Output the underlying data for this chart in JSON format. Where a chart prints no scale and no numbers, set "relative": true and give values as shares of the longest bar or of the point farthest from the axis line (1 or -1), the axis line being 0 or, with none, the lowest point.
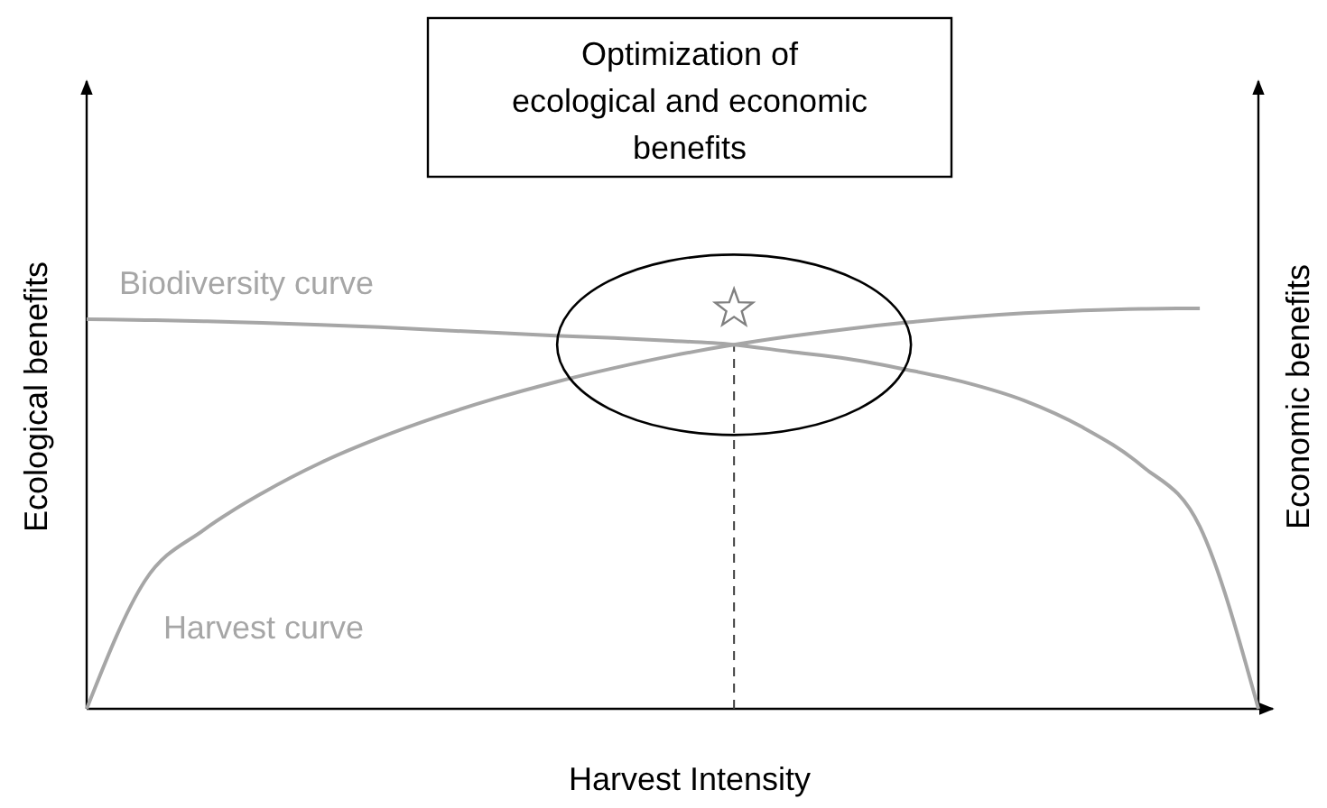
{
  "chart_data": {
    "type": "line",
    "relative": true,
    "title": "Optimization of ecological and economic benefits",
    "xlabel": "Harvest Intensity",
    "ylabel": "Ecological benefits",
    "y2label": "Economic benefits",
    "categories": [
      null,
      null,
      null,
      null,
      null,
      null,
      null,
      null,
      null,
      null,
      null,
      null,
      null,
      null,
      null,
      null,
      null,
      null,
      null,
      null,
      null
    ],
    "series": [
      {
        "name": "Biodiversity curve",
        "color": "#a6a6a6",
        "values": [
          0.973,
          0.971,
          0.968,
          0.964,
          0.959,
          0.953,
          0.946,
          0.939,
          0.932,
          0.926,
          0.919,
          0.91,
          0.892,
          0.874,
          0.847,
          0.815,
          0.77,
          0.703,
          0.608,
          0.455,
          0
        ]
      },
      {
        "name": "Harvest curve",
        "color": "#a6a6a6",
        "values": [
          0,
          0.321,
          0.447,
          0.539,
          0.615,
          0.677,
          0.73,
          0.776,
          0.816,
          0.851,
          0.882,
          0.908,
          0.93,
          0.949,
          0.965,
          0.978,
          0.988,
          0.995,
          0.999,
          1,
          null
        ]
      }
    ]
  }
}
